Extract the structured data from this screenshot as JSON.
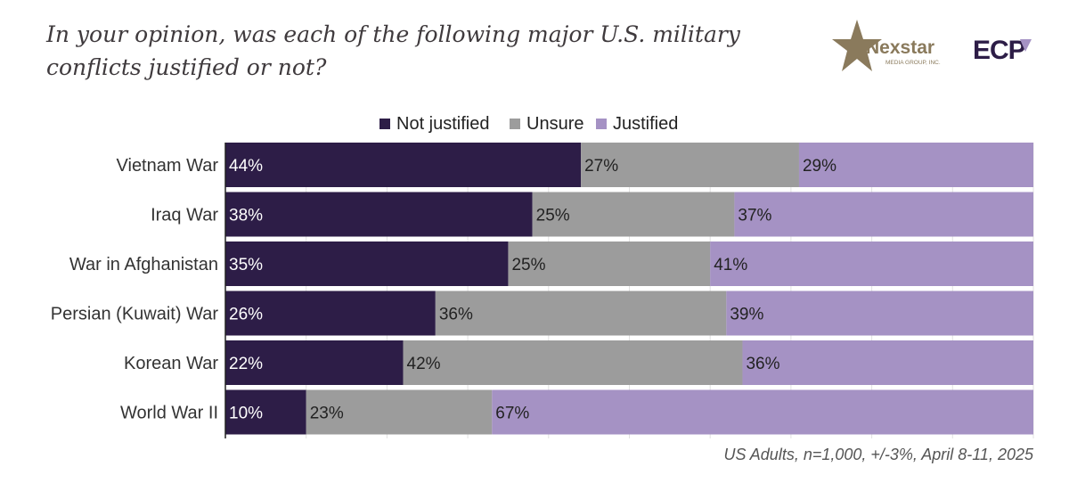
{
  "title": "In your opinion, was each of the following major U.S. military conflicts justified or not?",
  "logos": {
    "nexstar_name": "Nexstar",
    "nexstar_sub": "MEDIA GROUP, INC.",
    "ecp": "ECP"
  },
  "colors": {
    "not_justified": "#2d1d47",
    "unsure": "#9c9c9c",
    "justified": "#a592c4",
    "title": "#3f3a3d",
    "logo_gold": "#8a7a5c",
    "logo_purple": "#2d1d47"
  },
  "chart_data": {
    "type": "bar",
    "orientation": "horizontal-stacked-100",
    "title": "In your opinion, was each of the following major U.S. military conflicts justified or not?",
    "categories": [
      "Vietnam War",
      "Iraq War",
      "War in Afghanistan",
      "Persian (Kuwait) War",
      "Korean War",
      "World War II"
    ],
    "series": [
      {
        "name": "Not justified",
        "values": [
          44,
          38,
          35,
          26,
          22,
          10
        ],
        "labels": [
          "44%",
          "38%",
          "35%",
          "26%",
          "22%",
          "10%"
        ]
      },
      {
        "name": "Unsure",
        "values": [
          27,
          25,
          25,
          36,
          42,
          23
        ],
        "labels": [
          "27%",
          "25%",
          "25%",
          "36%",
          "42%",
          "23%"
        ]
      },
      {
        "name": "Justified",
        "values": [
          29,
          37,
          41,
          39,
          36,
          67
        ],
        "labels": [
          "29%",
          "37%",
          "41%",
          "39%",
          "36%",
          "67%"
        ]
      }
    ],
    "xlim": [
      0,
      100
    ],
    "legend_position": "top",
    "grid": true
  },
  "footer": "US Adults, n=1,000, +/-3%, April 8-11, 2025"
}
